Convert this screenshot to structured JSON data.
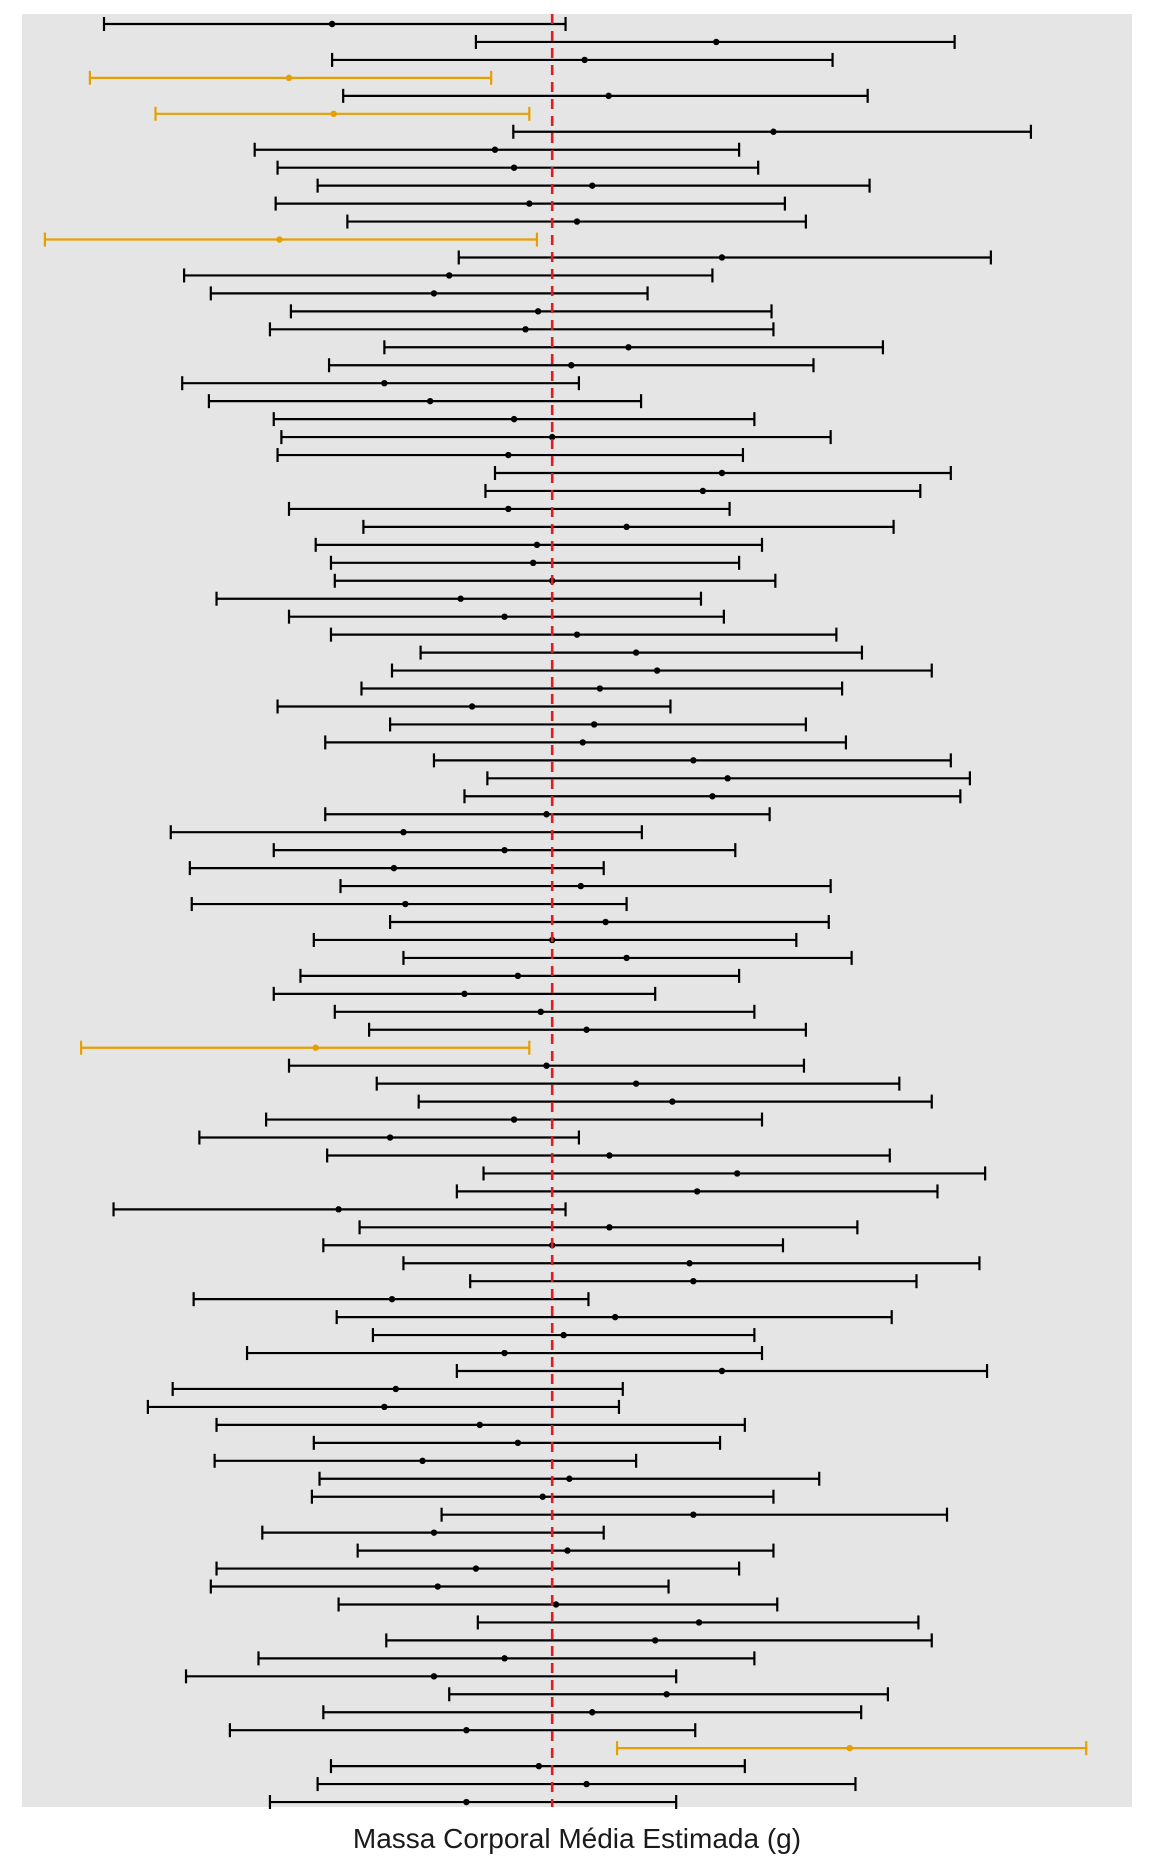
{
  "chart_data": {
    "type": "interval",
    "xlabel": "Massa Corporal Média Estimada (g)",
    "reference_value": 0,
    "xlim": [
      -13.9,
      15.2
    ],
    "grid": false,
    "colors": {
      "covers": "#000000",
      "misses": "#E69F00",
      "reference": "#E41A1C",
      "panel": "#E5E5E5"
    },
    "intervals": [
      {
        "low": -11.75,
        "mean": -5.77,
        "high": 0.35,
        "covers": true
      },
      {
        "low": -2.0,
        "mean": 4.3,
        "high": 10.55,
        "covers": true
      },
      {
        "low": -5.77,
        "mean": 0.85,
        "high": 7.35,
        "covers": true
      },
      {
        "low": -12.12,
        "mean": -6.9,
        "high": -1.6,
        "covers": false
      },
      {
        "low": -5.48,
        "mean": 1.48,
        "high": 8.27,
        "covers": true
      },
      {
        "low": -10.4,
        "mean": -5.73,
        "high": -0.6,
        "covers": false
      },
      {
        "low": -1.02,
        "mean": 5.8,
        "high": 12.55,
        "covers": true
      },
      {
        "low": -7.8,
        "mean": -1.5,
        "high": 4.9,
        "covers": true
      },
      {
        "low": -7.2,
        "mean": -1.0,
        "high": 5.4,
        "covers": true
      },
      {
        "low": -6.15,
        "mean": 1.05,
        "high": 8.32,
        "covers": true
      },
      {
        "low": -7.25,
        "mean": -0.6,
        "high": 6.1,
        "covers": true
      },
      {
        "low": -5.37,
        "mean": 0.65,
        "high": 6.65,
        "covers": true
      },
      {
        "low": -13.3,
        "mean": -7.15,
        "high": -0.4,
        "covers": false
      },
      {
        "low": -2.45,
        "mean": 4.45,
        "high": 11.5,
        "covers": true
      },
      {
        "low": -9.65,
        "mean": -2.7,
        "high": 4.2,
        "covers": true
      },
      {
        "low": -8.95,
        "mean": -3.1,
        "high": 2.5,
        "covers": true
      },
      {
        "low": -6.85,
        "mean": -0.37,
        "high": 5.75,
        "covers": true
      },
      {
        "low": -7.4,
        "mean": -0.7,
        "high": 5.8,
        "covers": true
      },
      {
        "low": -4.4,
        "mean": 2.0,
        "high": 8.67,
        "covers": true
      },
      {
        "low": -5.85,
        "mean": 0.5,
        "high": 6.85,
        "covers": true
      },
      {
        "low": -9.7,
        "mean": -4.4,
        "high": 0.7,
        "covers": true
      },
      {
        "low": -9.0,
        "mean": -3.2,
        "high": 2.33,
        "covers": true
      },
      {
        "low": -7.3,
        "mean": -1.0,
        "high": 5.3,
        "covers": true
      },
      {
        "low": -7.1,
        "mean": 0.0,
        "high": 7.3,
        "covers": true
      },
      {
        "low": -7.2,
        "mean": -1.15,
        "high": 5.0,
        "covers": true
      },
      {
        "low": -1.5,
        "mean": 4.45,
        "high": 10.45,
        "covers": true
      },
      {
        "low": -1.75,
        "mean": 3.95,
        "high": 9.65,
        "covers": true
      },
      {
        "low": -6.9,
        "mean": -1.15,
        "high": 4.65,
        "covers": true
      },
      {
        "low": -4.95,
        "mean": 1.95,
        "high": 8.95,
        "covers": true
      },
      {
        "low": -6.2,
        "mean": -0.4,
        "high": 5.5,
        "covers": true
      },
      {
        "low": -5.8,
        "mean": -0.5,
        "high": 4.9,
        "covers": true
      },
      {
        "low": -5.7,
        "mean": 0.0,
        "high": 5.85,
        "covers": true
      },
      {
        "low": -8.8,
        "mean": -2.4,
        "high": 3.9,
        "covers": true
      },
      {
        "low": -6.9,
        "mean": -1.25,
        "high": 4.5,
        "covers": true
      },
      {
        "low": -5.8,
        "mean": 0.65,
        "high": 7.45,
        "covers": true
      },
      {
        "low": -3.45,
        "mean": 2.2,
        "high": 8.12,
        "covers": true
      },
      {
        "low": -4.2,
        "mean": 2.75,
        "high": 9.95,
        "covers": true
      },
      {
        "low": -5.0,
        "mean": 1.25,
        "high": 7.6,
        "covers": true
      },
      {
        "low": -7.2,
        "mean": -2.1,
        "high": 3.1,
        "covers": true
      },
      {
        "low": -4.25,
        "mean": 1.1,
        "high": 6.65,
        "covers": true
      },
      {
        "low": -5.95,
        "mean": 0.8,
        "high": 7.7,
        "covers": true
      },
      {
        "low": -3.1,
        "mean": 3.7,
        "high": 10.45,
        "covers": true
      },
      {
        "low": -1.7,
        "mean": 4.6,
        "high": 10.95,
        "covers": true
      },
      {
        "low": -2.3,
        "mean": 4.2,
        "high": 10.7,
        "covers": true
      },
      {
        "low": -5.95,
        "mean": -0.15,
        "high": 5.7,
        "covers": true
      },
      {
        "low": -10.0,
        "mean": -3.9,
        "high": 2.35,
        "covers": true
      },
      {
        "low": -7.3,
        "mean": -1.25,
        "high": 4.8,
        "covers": true
      },
      {
        "low": -9.5,
        "mean": -4.15,
        "high": 1.35,
        "covers": true
      },
      {
        "low": -5.55,
        "mean": 0.75,
        "high": 7.3,
        "covers": true
      },
      {
        "low": -9.45,
        "mean": -3.85,
        "high": 1.95,
        "covers": true
      },
      {
        "low": -4.25,
        "mean": 1.4,
        "high": 7.25,
        "covers": true
      },
      {
        "low": -6.25,
        "mean": 0.0,
        "high": 6.4,
        "covers": true
      },
      {
        "low": -3.9,
        "mean": 1.95,
        "high": 7.85,
        "covers": true
      },
      {
        "low": -6.6,
        "mean": -0.9,
        "high": 4.9,
        "covers": true
      },
      {
        "low": -7.3,
        "mean": -2.3,
        "high": 2.7,
        "covers": true
      },
      {
        "low": -5.7,
        "mean": -0.3,
        "high": 5.3,
        "covers": true
      },
      {
        "low": -4.8,
        "mean": 0.9,
        "high": 6.65,
        "covers": true
      },
      {
        "low": -12.35,
        "mean": -6.2,
        "high": -0.6,
        "covers": false
      },
      {
        "low": -6.9,
        "mean": -0.15,
        "high": 6.6,
        "covers": true
      },
      {
        "low": -4.6,
        "mean": 2.2,
        "high": 9.1,
        "covers": true
      },
      {
        "low": -3.5,
        "mean": 3.15,
        "high": 9.95,
        "covers": true
      },
      {
        "low": -7.5,
        "mean": -1.0,
        "high": 5.5,
        "covers": true
      },
      {
        "low": -9.25,
        "mean": -4.25,
        "high": 0.7,
        "covers": true
      },
      {
        "low": -5.9,
        "mean": 1.5,
        "high": 8.85,
        "covers": true
      },
      {
        "low": -1.8,
        "mean": 4.85,
        "high": 11.35,
        "covers": true
      },
      {
        "low": -2.5,
        "mean": 3.8,
        "high": 10.1,
        "covers": true
      },
      {
        "low": -11.5,
        "mean": -5.6,
        "high": 0.35,
        "covers": true
      },
      {
        "low": -5.05,
        "mean": 1.5,
        "high": 8.0,
        "covers": true
      },
      {
        "low": -6.0,
        "mean": 0.0,
        "high": 6.05,
        "covers": true
      },
      {
        "low": -3.9,
        "mean": 3.6,
        "high": 11.2,
        "covers": true
      },
      {
        "low": -2.15,
        "mean": 3.7,
        "high": 9.55,
        "covers": true
      },
      {
        "low": -9.4,
        "mean": -4.2,
        "high": 0.95,
        "covers": true
      },
      {
        "low": -5.65,
        "mean": 1.65,
        "high": 8.9,
        "covers": true
      },
      {
        "low": -4.7,
        "mean": 0.3,
        "high": 5.3,
        "covers": true
      },
      {
        "low": -8.0,
        "mean": -1.25,
        "high": 5.5,
        "covers": true
      },
      {
        "low": -2.5,
        "mean": 4.45,
        "high": 11.4,
        "covers": true
      },
      {
        "low": -9.95,
        "mean": -4.1,
        "high": 1.85,
        "covers": true
      },
      {
        "low": -10.6,
        "mean": -4.4,
        "high": 1.75,
        "covers": true
      },
      {
        "low": -8.8,
        "mean": -1.9,
        "high": 5.05,
        "covers": true
      },
      {
        "low": -6.25,
        "mean": -0.9,
        "high": 4.4,
        "covers": true
      },
      {
        "low": -8.85,
        "mean": -3.4,
        "high": 2.2,
        "covers": true
      },
      {
        "low": -6.1,
        "mean": 0.45,
        "high": 7.0,
        "covers": true
      },
      {
        "low": -6.3,
        "mean": -0.25,
        "high": 5.8,
        "covers": true
      },
      {
        "low": -2.9,
        "mean": 3.7,
        "high": 10.35,
        "covers": true
      },
      {
        "low": -7.6,
        "mean": -3.1,
        "high": 1.35,
        "covers": true
      },
      {
        "low": -5.1,
        "mean": 0.4,
        "high": 5.8,
        "covers": true
      },
      {
        "low": -8.8,
        "mean": -2.0,
        "high": 4.9,
        "covers": true
      },
      {
        "low": -8.95,
        "mean": -3.0,
        "high": 3.05,
        "covers": true
      },
      {
        "low": -5.6,
        "mean": 0.1,
        "high": 5.9,
        "covers": true
      },
      {
        "low": -1.95,
        "mean": 3.85,
        "high": 9.6,
        "covers": true
      },
      {
        "low": -4.35,
        "mean": 2.7,
        "high": 9.95,
        "covers": true
      },
      {
        "low": -7.7,
        "mean": -1.25,
        "high": 5.3,
        "covers": true
      },
      {
        "low": -9.6,
        "mean": -3.1,
        "high": 3.25,
        "covers": true
      },
      {
        "low": -2.7,
        "mean": 3.0,
        "high": 8.8,
        "covers": true
      },
      {
        "low": -6.0,
        "mean": 1.05,
        "high": 8.1,
        "covers": true
      },
      {
        "low": -8.45,
        "mean": -2.25,
        "high": 3.75,
        "covers": true
      },
      {
        "low": 1.7,
        "mean": 7.8,
        "high": 14.0,
        "covers": false
      },
      {
        "low": -5.8,
        "mean": -0.35,
        "high": 5.05,
        "covers": true
      },
      {
        "low": -6.15,
        "mean": 0.9,
        "high": 7.95,
        "covers": true
      },
      {
        "low": -7.4,
        "mean": -2.25,
        "high": 3.25,
        "covers": true
      }
    ]
  }
}
